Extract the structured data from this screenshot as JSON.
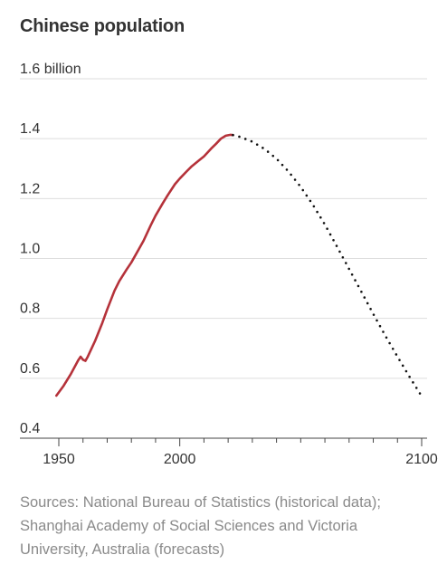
{
  "title": "Chinese population",
  "source": "Sources: National Bureau of Statistics (historical data); Shanghai Academy of Social Sciences and Victoria University, Australia (forecasts)",
  "colors": {
    "historical": "#b5323a",
    "forecast": "#111111",
    "grid": "#dddddd",
    "axis": "#444444",
    "text": "#333333",
    "muted": "#8a8a8a"
  },
  "chart_data": {
    "type": "line",
    "title": "Chinese population",
    "xlabel": "",
    "ylabel": "",
    "xlim": [
      1950,
      2100
    ],
    "ylim": [
      0.4,
      1.6
    ],
    "y_ticks": [
      {
        "value": 1.6,
        "label": "1.6 billion"
      },
      {
        "value": 1.4,
        "label": "1.4"
      },
      {
        "value": 1.2,
        "label": "1.2"
      },
      {
        "value": 1.0,
        "label": "1.0"
      },
      {
        "value": 0.8,
        "label": "0.8"
      },
      {
        "value": 0.6,
        "label": "0.6"
      },
      {
        "value": 0.4,
        "label": "0.4"
      }
    ],
    "x_ticks": [
      {
        "value": 1950,
        "label": "1950"
      },
      {
        "value": 2000,
        "label": "2000"
      },
      {
        "value": 2100,
        "label": "2100"
      }
    ],
    "x_minor_ticks": [
      1960,
      1970,
      1980,
      1990,
      2010,
      2020,
      2030,
      2040,
      2050,
      2060,
      2070,
      2080,
      2090
    ],
    "grid": true,
    "series": [
      {
        "style": "solid",
        "x": [
          1949,
          1952,
          1955,
          1958,
          1959,
          1960,
          1961,
          1962,
          1965,
          1968,
          1970,
          1973,
          1975,
          1978,
          1980,
          1983,
          1985,
          1988,
          1990,
          1993,
          1995,
          1998,
          2000,
          2003,
          2005,
          2008,
          2010,
          2013,
          2015,
          2017,
          2019,
          2021,
          2022
        ],
        "y": [
          0.542,
          0.575,
          0.615,
          0.66,
          0.672,
          0.662,
          0.658,
          0.673,
          0.725,
          0.785,
          0.83,
          0.892,
          0.924,
          0.963,
          0.987,
          1.03,
          1.059,
          1.111,
          1.143,
          1.185,
          1.211,
          1.248,
          1.267,
          1.292,
          1.308,
          1.328,
          1.341,
          1.367,
          1.383,
          1.4,
          1.41,
          1.413,
          1.412
        ]
      },
      {
        "style": "dotted",
        "x": [
          2022,
          2025,
          2030,
          2035,
          2040,
          2045,
          2050,
          2055,
          2060,
          2065,
          2070,
          2075,
          2080,
          2085,
          2090,
          2095,
          2100
        ],
        "y": [
          1.412,
          1.406,
          1.39,
          1.366,
          1.333,
          1.29,
          1.239,
          1.18,
          1.113,
          1.04,
          0.965,
          0.89,
          0.815,
          0.742,
          0.672,
          0.605,
          0.54
        ]
      }
    ]
  }
}
